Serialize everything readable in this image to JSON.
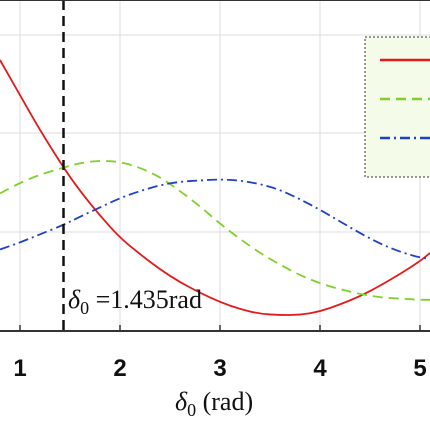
{
  "chart_data": {
    "type": "line",
    "xlabel_symbol": "δ",
    "xlabel_sub": "0",
    "xlabel_unit": " (rad)",
    "x_ticks": [
      "1",
      "2",
      "3",
      "4",
      "5"
    ],
    "x_tick_values": [
      1,
      2,
      3,
      4,
      5
    ],
    "xlim": [
      0.8,
      5.1
    ],
    "ylim": [
      -1.2,
      1.2
    ],
    "grid": true,
    "legend_placement": "top-right",
    "vline_x": 1.435,
    "annotation_symbol": "δ",
    "annotation_sub": "0",
    "annotation_value": " =1.435rad",
    "series": [
      {
        "color": "#e41a1c",
        "style": "solid",
        "x": [
          0.8,
          1.0,
          1.2,
          1.435,
          1.6,
          1.8,
          2.0,
          2.2,
          2.4,
          2.6,
          2.8,
          3.0,
          3.2,
          3.4,
          3.6,
          3.8,
          4.0,
          4.2,
          4.4,
          4.6,
          4.8,
          5.0,
          5.1
        ],
        "y": [
          1.0,
          0.7,
          0.4,
          0.08,
          -0.12,
          -0.33,
          -0.52,
          -0.66,
          -0.79,
          -0.9,
          -0.99,
          -1.07,
          -1.13,
          -1.17,
          -1.18,
          -1.18,
          -1.15,
          -1.09,
          -1.02,
          -0.93,
          -0.83,
          -0.72,
          -0.65
        ]
      },
      {
        "color": "#7fd12a",
        "style": "dashed",
        "x": [
          0.8,
          1.0,
          1.2,
          1.435,
          1.6,
          1.8,
          2.0,
          2.2,
          2.4,
          2.6,
          2.8,
          3.0,
          3.2,
          3.4,
          3.6,
          3.8,
          4.0,
          4.2,
          4.4,
          4.6,
          4.8,
          5.0,
          5.1
        ],
        "y": [
          -0.14,
          -0.05,
          0.02,
          0.08,
          0.12,
          0.14,
          0.13,
          0.08,
          0.0,
          -0.12,
          -0.25,
          -0.4,
          -0.53,
          -0.65,
          -0.75,
          -0.84,
          -0.91,
          -0.96,
          -1.0,
          -1.03,
          -1.04,
          -1.05,
          -1.05
        ]
      },
      {
        "color": "#2040c8",
        "style": "dashdot",
        "x": [
          0.8,
          1.0,
          1.2,
          1.435,
          1.6,
          1.8,
          2.0,
          2.2,
          2.4,
          2.6,
          2.8,
          3.0,
          3.2,
          3.4,
          3.6,
          3.8,
          4.0,
          4.2,
          4.4,
          4.6,
          4.8,
          5.0,
          5.1
        ],
        "y": [
          -0.62,
          -0.56,
          -0.49,
          -0.41,
          -0.34,
          -0.26,
          -0.18,
          -0.12,
          -0.07,
          -0.04,
          -0.03,
          -0.02,
          -0.03,
          -0.06,
          -0.11,
          -0.19,
          -0.28,
          -0.38,
          -0.48,
          -0.57,
          -0.64,
          -0.69,
          -0.7
        ]
      }
    ]
  }
}
